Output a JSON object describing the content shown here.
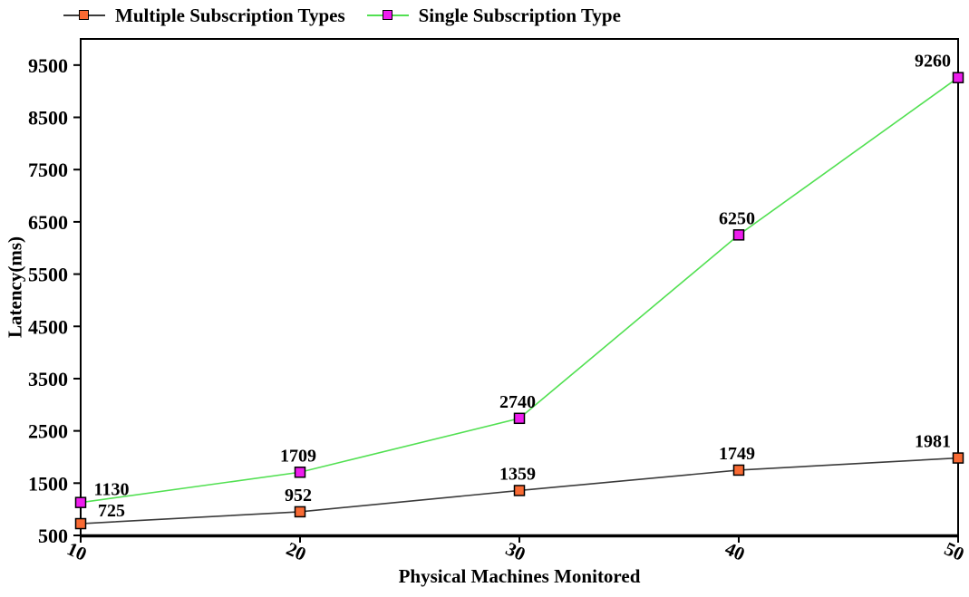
{
  "chart_data": {
    "type": "line",
    "x": [
      10,
      20,
      30,
      40,
      50
    ],
    "x_ticks": [
      10,
      20,
      30,
      40,
      50
    ],
    "y_ticks": [
      500,
      1500,
      2500,
      3500,
      4500,
      5500,
      6500,
      7500,
      8500,
      9500
    ],
    "xlim": [
      10,
      50
    ],
    "ylim": [
      500,
      10000
    ],
    "grid": false,
    "legend_position": "top",
    "point_labels": true,
    "xlabel": "Physical Machines Monitored",
    "ylabel": "Latency(ms)",
    "series": [
      {
        "name": "Multiple Subscription Types",
        "values": [
          725,
          952,
          1359,
          1749,
          1981
        ],
        "line_color": "#3b3b3b",
        "marker_color": "#f96a33",
        "marker": "square"
      },
      {
        "name": "Single Subscription Type",
        "values": [
          1130,
          1709,
          2740,
          6250,
          9260
        ],
        "line_color": "#52e052",
        "marker_color": "#ee1dee",
        "marker": "square"
      }
    ],
    "colors": {
      "axis": "#000000",
      "text": "#000000",
      "background": "#ffffff"
    }
  }
}
